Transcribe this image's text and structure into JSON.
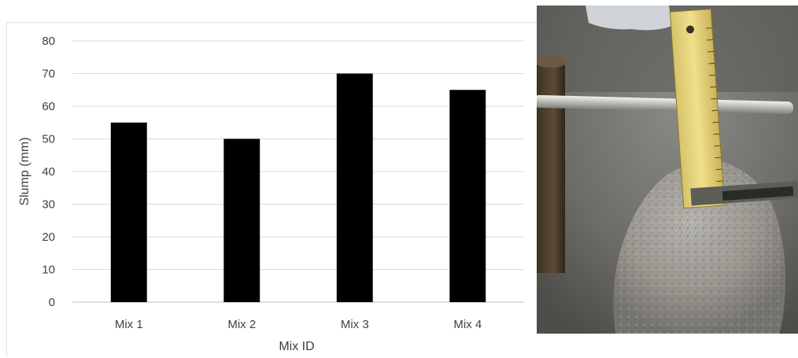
{
  "chart_data": {
    "type": "bar",
    "title": "",
    "categories": [
      "Mix 1",
      "Mix 2",
      "Mix 3",
      "Mix 4"
    ],
    "values": [
      55,
      50,
      70,
      65
    ],
    "xlabel": "Mix ID",
    "ylabel": "Slump (mm)",
    "ylim": [
      0,
      80
    ],
    "yticks": [
      0,
      10,
      20,
      30,
      40,
      50,
      60,
      70,
      80
    ],
    "grid": true,
    "legend": "none",
    "bar_color": "#000000",
    "grid_color": "#d9d9d9"
  },
  "photo": {
    "subject": "slump-test-photo"
  }
}
